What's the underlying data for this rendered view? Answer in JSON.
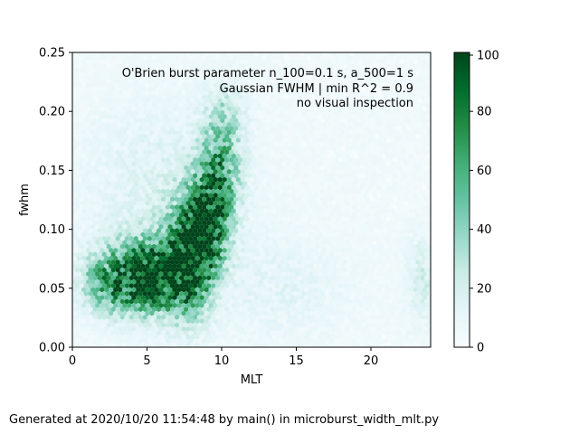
{
  "chart_data": {
    "type": "heatmap",
    "subtype": "hexbin",
    "title": "",
    "xlabel": "MLT",
    "ylabel": "fwhm",
    "xlim": [
      0,
      24
    ],
    "ylim": [
      0,
      0.25
    ],
    "xticks": [
      0,
      5,
      10,
      15,
      20
    ],
    "yticks": [
      0.0,
      0.05,
      0.1,
      0.15,
      0.2,
      0.25
    ],
    "ytick_labels": [
      "0.00",
      "0.05",
      "0.10",
      "0.15",
      "0.20",
      "0.25"
    ],
    "grid": false,
    "colormap": "BuGn",
    "colormap_stops": [
      "#f7fcfd",
      "#e5f5f9",
      "#ccece6",
      "#99d8c9",
      "#66c2a4",
      "#41ae76",
      "#238b45",
      "#006d2c",
      "#00441b"
    ],
    "colorbar": {
      "range": [
        0,
        100
      ],
      "ticks": [
        0,
        20,
        40,
        60,
        80,
        100
      ]
    },
    "annotations": [
      "O'Brien burst parameter n_100=0.1 s, a_500=1 s",
      "Gaussian FWHM | min R^2 = 0.9",
      "no visual inspection"
    ],
    "density_regions": [
      {
        "mlt": 5.0,
        "fwhm": 0.06,
        "peak_count": 100
      },
      {
        "mlt": 7.5,
        "fwhm": 0.07,
        "peak_count": 95
      },
      {
        "mlt": 9.0,
        "fwhm": 0.1,
        "peak_count": 85
      },
      {
        "mlt": 10.0,
        "fwhm": 0.15,
        "peak_count": 45
      },
      {
        "mlt": 2.5,
        "fwhm": 0.055,
        "peak_count": 45
      },
      {
        "mlt": 23.5,
        "fwhm": 0.06,
        "peak_count": 15
      }
    ]
  },
  "footer": "Generated at 2020/10/20 11:54:48 by main() in microburst_width_mlt.py"
}
